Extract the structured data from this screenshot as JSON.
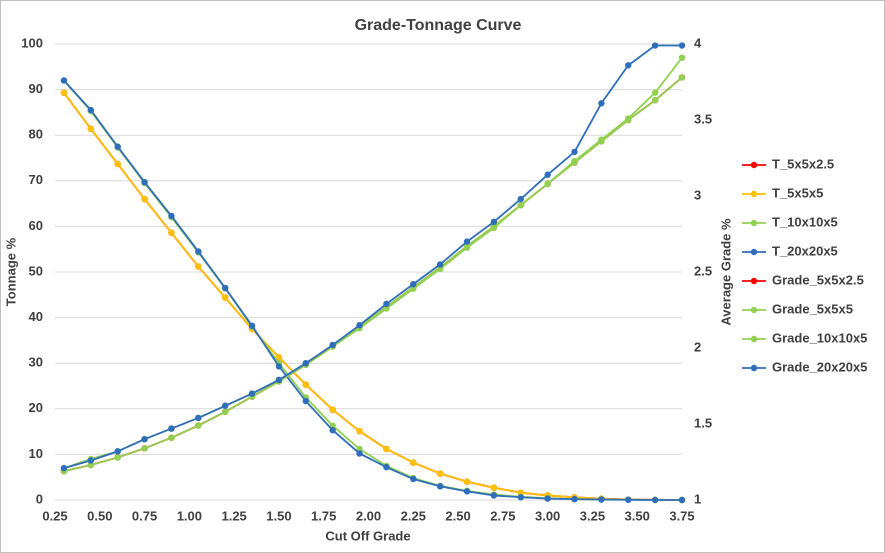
{
  "chart_data": {
    "type": "line",
    "title": "Grade-Tonnage Curve",
    "x_label": "Cut Off Grade",
    "y_label": "Tonnage %",
    "y2_label": "Average Grade %",
    "x": [
      0.3,
      0.45,
      0.6,
      0.75,
      0.9,
      1.05,
      1.2,
      1.35,
      1.5,
      1.65,
      1.8,
      1.95,
      2.1,
      2.25,
      2.4,
      2.55,
      2.7,
      2.85,
      3.0,
      3.15,
      3.3,
      3.45,
      3.6,
      3.75
    ],
    "xlim": [
      0.25,
      3.75
    ],
    "xticks": [
      0.25,
      {
        "value": 0.5,
        "label": "0.50"
      },
      0.75,
      {
        "value": 1,
        "label": "1.00"
      },
      1.25,
      {
        "value": 1.5,
        "label": "1.50"
      },
      1.75,
      {
        "value": 2,
        "label": "2.00"
      },
      2.25,
      {
        "value": 2.5,
        "label": "2.50"
      },
      2.75,
      {
        "value": 3,
        "label": "3.00"
      },
      3.25,
      {
        "value": 3.5,
        "label": "3.50"
      },
      3.75
    ],
    "ylim": [
      0,
      100
    ],
    "yticks": [
      0,
      10,
      20,
      30,
      40,
      50,
      60,
      70,
      80,
      90,
      100
    ],
    "y2lim": [
      1,
      4
    ],
    "y2ticks": [
      1,
      1.5,
      2,
      2.5,
      3,
      3.5,
      4
    ],
    "grid": true,
    "legend": "right",
    "series": [
      {
        "name": "T_5x5x2.5",
        "color": "#ff0000",
        "values": [
          89.3,
          81.4,
          73.7,
          66,
          58.6,
          51.2,
          44.4,
          37.5,
          31.3,
          25.3,
          19.8,
          15.1,
          11.2,
          8.2,
          5.8,
          4,
          2.7,
          1.6,
          1,
          0.6,
          0.3,
          0.1,
          0.05,
          0
        ]
      },
      {
        "name": "T_5x5x5",
        "color": "#ffc000",
        "values": [
          89.3,
          81.4,
          73.7,
          66,
          58.6,
          51.2,
          44.4,
          37.5,
          31.3,
          25.3,
          19.8,
          15.1,
          11.2,
          8.2,
          5.8,
          4,
          2.7,
          1.6,
          1,
          0.6,
          0.3,
          0.1,
          0.05,
          0
        ]
      },
      {
        "name": "T_10x10x5",
        "color": "#92d050",
        "values": [
          92,
          85.3,
          77.3,
          69.5,
          62,
          54.3,
          46.4,
          38,
          30,
          22.5,
          16.3,
          11.2,
          7.5,
          4.8,
          3.1,
          2,
          1.2,
          0.7,
          0.4,
          0.2,
          0.1,
          0.05,
          0,
          0
        ]
      },
      {
        "name": "T_20x20x5",
        "color": "#2f6eba",
        "values": [
          92,
          85.5,
          77.5,
          69.7,
          62.3,
          54.5,
          46.5,
          38.2,
          29.3,
          21.7,
          15.3,
          10.2,
          7.2,
          4.6,
          3,
          1.9,
          1,
          0.6,
          0.3,
          0.2,
          0.1,
          0.05,
          0,
          0
        ]
      },
      {
        "name": "Grade_5x5x2.5",
        "color": "#ff0000",
        "axis": "y2",
        "values": [
          1.19,
          1.23,
          1.28,
          1.34,
          1.41,
          1.49,
          1.58,
          1.68,
          1.78,
          1.89,
          2.01,
          2.14,
          2.27,
          2.4,
          2.53,
          2.67,
          2.8,
          2.94,
          3.08,
          3.22,
          3.36,
          3.5,
          3.63,
          3.78
        ]
      },
      {
        "name": "Grade_5x5x5",
        "color": "#92d050",
        "axis": "y2",
        "values": [
          1.19,
          1.23,
          1.28,
          1.34,
          1.41,
          1.49,
          1.58,
          1.68,
          1.78,
          1.89,
          2.01,
          2.14,
          2.27,
          2.4,
          2.53,
          2.67,
          2.8,
          2.94,
          3.08,
          3.22,
          3.36,
          3.5,
          3.63,
          3.78
        ]
      },
      {
        "name": "Grade_10x10x5",
        "color": "#92d050",
        "axis": "y2",
        "values": [
          1.21,
          1.27,
          1.32,
          1.4,
          1.47,
          1.54,
          1.62,
          1.7,
          1.79,
          1.89,
          2.01,
          2.13,
          2.26,
          2.39,
          2.52,
          2.66,
          2.79,
          2.94,
          3.08,
          3.23,
          3.37,
          3.51,
          3.68,
          3.91
        ]
      },
      {
        "name": "Grade_20x20x5",
        "color": "#2f6eba",
        "axis": "y2",
        "values": [
          1.21,
          1.26,
          1.32,
          1.4,
          1.47,
          1.54,
          1.62,
          1.7,
          1.79,
          1.9,
          2.02,
          2.15,
          2.29,
          2.42,
          2.55,
          2.7,
          2.83,
          2.98,
          3.14,
          3.29,
          3.61,
          3.86,
          3.99,
          3.99
        ]
      }
    ]
  }
}
